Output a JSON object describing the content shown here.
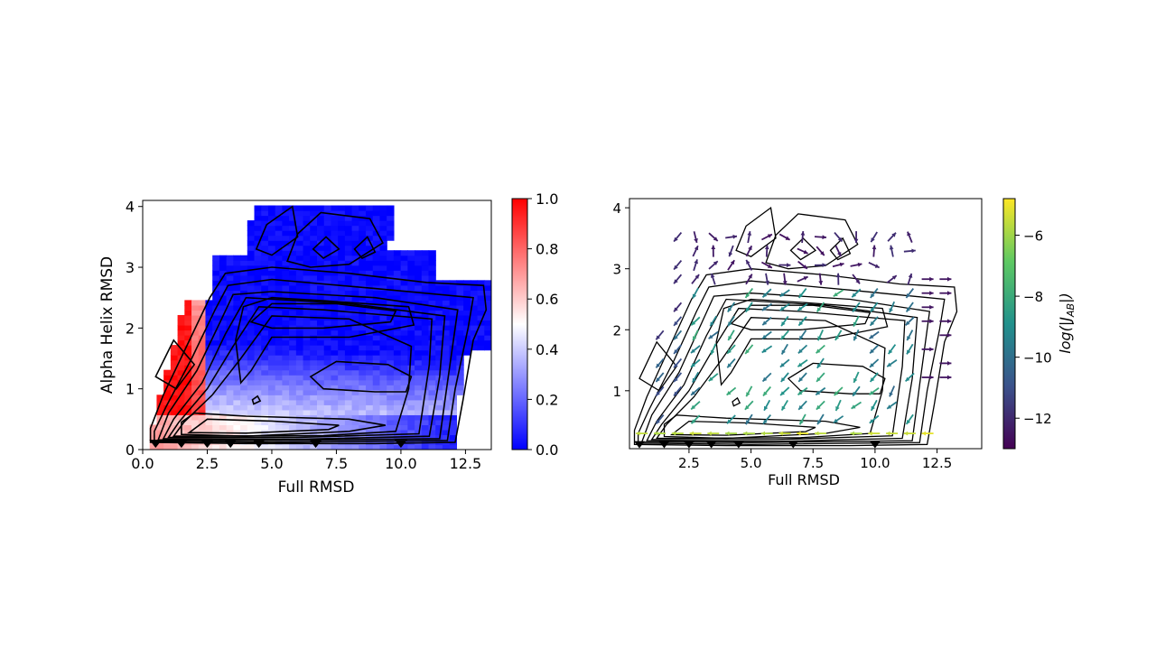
{
  "chart_data": [
    {
      "type": "heatmap",
      "xlabel": "Full RMSD",
      "ylabel": "Alpha Helix RMSD",
      "xlim": [
        0,
        13.5
      ],
      "ylim": [
        0,
        4.1
      ],
      "xticks": [
        0,
        2.5,
        5,
        7.5,
        10,
        12.5
      ],
      "xtick_labels": [
        "0.0",
        "2.5",
        "5.0",
        "7.5",
        "10.0",
        "12.5"
      ],
      "yticks": [
        0,
        1,
        2,
        3,
        4
      ],
      "ytick_labels": [
        "0",
        "1",
        "2",
        "3",
        "4"
      ],
      "colormap": {
        "low": "#0000ff",
        "mid": "#ffffff",
        "high": "#ff0000"
      },
      "colorbar": {
        "range": [
          0,
          1
        ],
        "ticks": [
          0,
          0.2,
          0.4,
          0.6,
          0.8,
          1
        ],
        "tick_labels": [
          "0.0",
          "0.2",
          "0.4",
          "0.6",
          "0.8",
          "1.0"
        ]
      },
      "markers": {
        "shape": "down-triangle",
        "color": "#000000",
        "points": [
          [
            0.5,
            0.1
          ],
          [
            1.5,
            0.1
          ],
          [
            2.5,
            0.1
          ],
          [
            3.4,
            0.1
          ],
          [
            4.5,
            0.1
          ],
          [
            6.7,
            0.1
          ],
          [
            10,
            0.1
          ]
        ]
      }
    },
    {
      "type": "scatter",
      "subtype": "quiver",
      "xlabel": "Full RMSD",
      "ylabel": "",
      "xlim": [
        0.1,
        14.3
      ],
      "ylim": [
        0.05,
        4.15
      ],
      "xticks": [
        2.5,
        5,
        7.5,
        10,
        12.5
      ],
      "xtick_labels": [
        "2.5",
        "5.0",
        "7.5",
        "10.0",
        "12.5"
      ],
      "yticks": [
        1,
        2,
        3,
        4
      ],
      "ytick_labels": [
        "1",
        "2",
        "3",
        "4"
      ],
      "colormap": {
        "name": "viridis",
        "stops": [
          "#440154",
          "#3b528b",
          "#21918c",
          "#5ec962",
          "#fde725"
        ]
      },
      "colorbar": {
        "label_base": "log(|J",
        "label_sub": "AB",
        "label_end": "|)",
        "range": [
          -13,
          -4.8
        ],
        "ticks": [
          -12,
          -10,
          -8,
          -6
        ],
        "tick_labels": [
          "−12",
          "−10",
          "−8",
          "−6"
        ]
      },
      "markers": {
        "shape": "down-triangle",
        "color": "#000000",
        "points": [
          [
            0.5,
            0.12
          ],
          [
            1.5,
            0.12
          ],
          [
            2.5,
            0.12
          ],
          [
            3.4,
            0.12
          ],
          [
            4.5,
            0.12
          ],
          [
            6.7,
            0.12
          ],
          [
            10,
            0.12
          ]
        ]
      }
    }
  ]
}
